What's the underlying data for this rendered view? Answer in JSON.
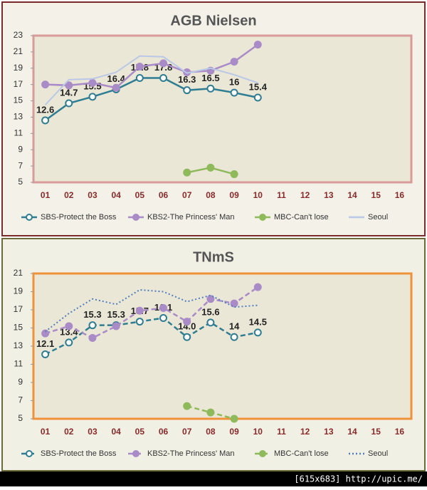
{
  "chart_data": [
    {
      "type": "line",
      "title": "AGB Nielsen",
      "categories": [
        "01",
        "02",
        "03",
        "04",
        "05",
        "06",
        "07",
        "08",
        "09",
        "10",
        "11",
        "12",
        "13",
        "14",
        "15",
        "16"
      ],
      "ylim": [
        5,
        23
      ],
      "yticks": [
        5,
        7,
        9,
        11,
        13,
        15,
        17,
        19,
        21,
        23
      ],
      "series": [
        {
          "name": "SBS-Protect the Boss",
          "color": "#2e7d92",
          "dash": "solid",
          "marker": "hollow",
          "data_labels": true,
          "values": [
            12.6,
            14.7,
            15.5,
            16.4,
            17.8,
            17.8,
            16.3,
            16.5,
            16,
            15.4,
            null,
            null,
            null,
            null,
            null,
            null
          ]
        },
        {
          "name": "KBS2-The Princess' Man",
          "color": "#a98bc8",
          "dash": "solid",
          "marker": "filled",
          "values": [
            17.0,
            16.9,
            17.2,
            16.6,
            19.2,
            19.6,
            18.5,
            18.7,
            19.8,
            21.9,
            null,
            null,
            null,
            null,
            null,
            null
          ]
        },
        {
          "name": "MBC-Can't lose",
          "color": "#8fba5c",
          "dash": "solid",
          "marker": "filled",
          "values": [
            null,
            null,
            null,
            null,
            null,
            null,
            6.2,
            6.8,
            6.0,
            null,
            null,
            null,
            null,
            null,
            null,
            null
          ]
        },
        {
          "name": "Seoul",
          "color": "#b8c8e6",
          "dash": "solid",
          "marker": "none",
          "values": [
            14.5,
            17.6,
            17.7,
            18.5,
            20.5,
            20.4,
            18.4,
            19.0,
            18.2,
            17.2,
            null,
            null,
            null,
            null,
            null,
            null
          ]
        }
      ]
    },
    {
      "type": "line",
      "title": "TNmS",
      "categories": [
        "01",
        "02",
        "03",
        "04",
        "05",
        "06",
        "07",
        "08",
        "09",
        "10",
        "11",
        "12",
        "13",
        "14",
        "15",
        "16"
      ],
      "ylim": [
        5,
        21
      ],
      "yticks": [
        5,
        7,
        9,
        11,
        13,
        15,
        17,
        19,
        21
      ],
      "series": [
        {
          "name": "SBS-Protect the Boss",
          "color": "#2e7d92",
          "dash": "dashed",
          "marker": "hollow",
          "data_labels": true,
          "values": [
            12.1,
            13.4,
            15.3,
            15.3,
            15.7,
            16.1,
            14.0,
            15.6,
            14,
            14.5,
            null,
            null,
            null,
            null,
            null,
            null
          ],
          "value_labels": [
            "12.1",
            "13.4",
            "15.3",
            "15.3",
            "15.7",
            "16.1",
            "14.0",
            "15.6",
            "14",
            "14.5",
            null,
            null,
            null,
            null,
            null,
            null
          ]
        },
        {
          "name": "KBS2-The Princess' Man",
          "color": "#a98bc8",
          "dash": "dashed",
          "marker": "filled",
          "values": [
            14.4,
            15.2,
            13.9,
            15.2,
            16.9,
            17.2,
            15.7,
            18.2,
            17.7,
            19.5,
            null,
            null,
            null,
            null,
            null,
            null
          ]
        },
        {
          "name": "MBC-Can't lose",
          "color": "#8fba5c",
          "dash": "dashed",
          "marker": "filled",
          "values": [
            null,
            null,
            null,
            null,
            null,
            null,
            6.4,
            5.7,
            5.0,
            null,
            null,
            null,
            null,
            null,
            null,
            null
          ]
        },
        {
          "name": "Seoul",
          "color": "#4f7fc0",
          "dash": "dotted",
          "marker": "none",
          "values": [
            14.6,
            16.6,
            18.2,
            17.6,
            19.2,
            19.0,
            17.9,
            18.6,
            17.3,
            17.5,
            null,
            null,
            null,
            null,
            null,
            null
          ]
        }
      ]
    }
  ],
  "footer": "[615x683] http://upic.me/"
}
